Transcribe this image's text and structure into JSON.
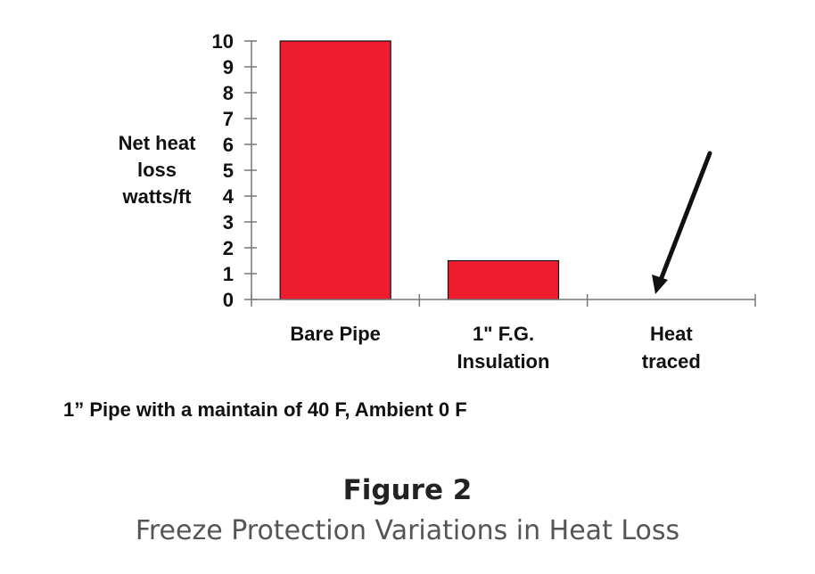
{
  "chart_data": {
    "type": "bar",
    "categories": [
      [
        "Bare Pipe"
      ],
      [
        "1\" F.G.",
        "Insulation"
      ],
      [
        "Heat",
        "traced"
      ]
    ],
    "values": [
      10,
      1.5,
      0
    ],
    "ylabel": [
      "Net heat",
      "loss",
      "watts/ft"
    ],
    "yticks": [
      0,
      1,
      2,
      3,
      4,
      5,
      6,
      7,
      8,
      9,
      10
    ],
    "ylim": [
      0,
      10
    ],
    "bar_color": "#ee1c2e",
    "annotation": "arrow pointing to Heat traced (zero heat loss)"
  },
  "note": "1” Pipe with a maintain of 40 F, Ambient 0 F",
  "figure": {
    "title": "Figure 2",
    "subtitle": "Freeze Protection Variations in Heat Loss"
  }
}
